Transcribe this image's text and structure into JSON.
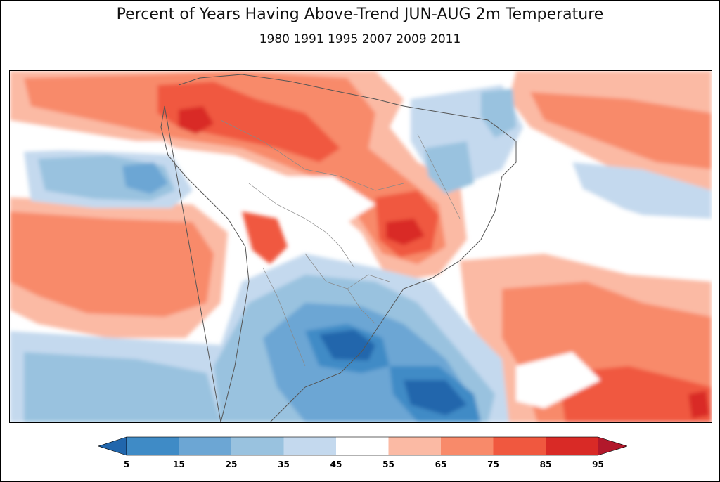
{
  "title": "Percent of Years Having Above-Trend JUN-AUG 2m Temperature",
  "subtitle": "1980 1991 1995 2007 2009 2011",
  "colorbar": {
    "levels": [
      "5",
      "15",
      "25",
      "35",
      "45",
      "55",
      "65",
      "75",
      "85",
      "95"
    ],
    "colors": [
      "#2166ac",
      "#3f8bc6",
      "#6ca6d4",
      "#99c2df",
      "#c4d9ee",
      "#ffffff",
      "#fbbaa4",
      "#f88a6a",
      "#f0583f",
      "#d92a26",
      "#b2182b"
    ],
    "extend": "both"
  },
  "map": {
    "region": "South America and adjacent oceans",
    "boundaries": "country and state borders"
  }
}
